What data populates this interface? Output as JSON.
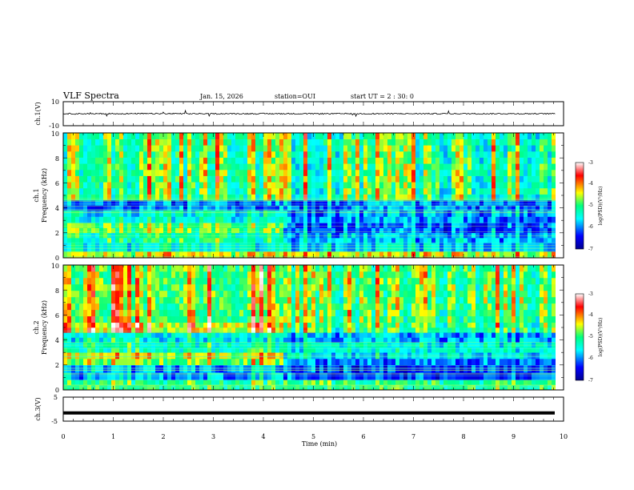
{
  "header": {
    "title": "VLF Spectra",
    "date": "Jan. 15, 2026",
    "station": "station=OUI",
    "start_ut": "start UT =  2 : 30: 0"
  },
  "chart_data": [
    {
      "id": "ch1_waveform",
      "type": "line",
      "ylabel": "ch.1(V)",
      "ylim": [
        -10,
        10
      ],
      "y_ticks": [
        "10",
        "-10"
      ],
      "trace_level": 0,
      "noise_amplitude": 1
    },
    {
      "id": "ch1_spectrogram",
      "type": "heatmap",
      "ylabel": "ch.1",
      "ylabel2": "Frequency (kHz)",
      "ylim": [
        0,
        10
      ],
      "y_ticks": [
        "0",
        "2",
        "4",
        "6",
        "8",
        "10"
      ],
      "xlim": [
        0,
        10
      ],
      "colorbar": {
        "label": "log(PSD)(V²/Hz)",
        "ticks": [
          "-3",
          "-4",
          "-5",
          "-6",
          "-7"
        ],
        "range": [
          -7,
          -3
        ]
      },
      "x_break": 4.35,
      "bands": [
        {
          "f0": 0.0,
          "f1": 0.5,
          "before": -4.6,
          "after": -4.6
        },
        {
          "f0": 0.5,
          "f1": 1.2,
          "before": -5.6,
          "after": -5.9
        },
        {
          "f0": 1.2,
          "f1": 2.0,
          "before": -5.3,
          "after": -6.0
        },
        {
          "f0": 2.0,
          "f1": 2.8,
          "before": -5.0,
          "after": -6.3
        },
        {
          "f0": 2.8,
          "f1": 3.8,
          "before": -5.6,
          "after": -6.1
        },
        {
          "f0": 3.8,
          "f1": 4.6,
          "before": -6.2,
          "after": -6.2
        },
        {
          "f0": 4.6,
          "f1": 10.0,
          "before": -5.3,
          "after": -5.5
        }
      ]
    },
    {
      "id": "ch2_spectrogram",
      "type": "heatmap",
      "ylabel": "ch.2",
      "ylabel2": "Frequency (kHz)",
      "ylim": [
        0,
        10
      ],
      "y_ticks": [
        "0",
        "2",
        "4",
        "6",
        "8",
        "10"
      ],
      "xlim": [
        0,
        10
      ],
      "colorbar": {
        "label": "log(PSD)(V²/Hz)",
        "ticks": [
          "-3",
          "-4",
          "-5",
          "-6",
          "-7"
        ],
        "range": [
          -7,
          -3
        ]
      },
      "x_break": 4.35,
      "bands": [
        {
          "f0": 0.0,
          "f1": 0.8,
          "before": -5.2,
          "after": -5.2
        },
        {
          "f0": 0.8,
          "f1": 2.0,
          "before": -6.0,
          "after": -6.4
        },
        {
          "f0": 2.0,
          "f1": 2.5,
          "before": -4.8,
          "after": -6.2
        },
        {
          "f0": 2.5,
          "f1": 3.0,
          "before": -4.6,
          "after": -5.8
        },
        {
          "f0": 3.0,
          "f1": 3.8,
          "before": -5.4,
          "after": -5.6
        },
        {
          "f0": 3.8,
          "f1": 4.6,
          "before": -5.6,
          "after": -6.0
        },
        {
          "f0": 4.6,
          "f1": 5.4,
          "before": -4.5,
          "after": -5.4
        },
        {
          "f0": 5.4,
          "f1": 10.0,
          "before": -5.0,
          "after": -5.3
        }
      ]
    },
    {
      "id": "ch3_waveform",
      "type": "line",
      "ylabel": "ch.3(V)",
      "ylim": [
        -5,
        5
      ],
      "y_ticks": [
        "5",
        "-5"
      ],
      "trace_level": -1.6
    }
  ],
  "xaxis": {
    "label": "Time (min)",
    "range": [
      0,
      10
    ],
    "ticks": [
      "0",
      "1",
      "2",
      "3",
      "4",
      "5",
      "6",
      "7",
      "8",
      "9",
      "10"
    ]
  },
  "colors": {
    "frame": "#000000",
    "background": "#ffffff"
  }
}
